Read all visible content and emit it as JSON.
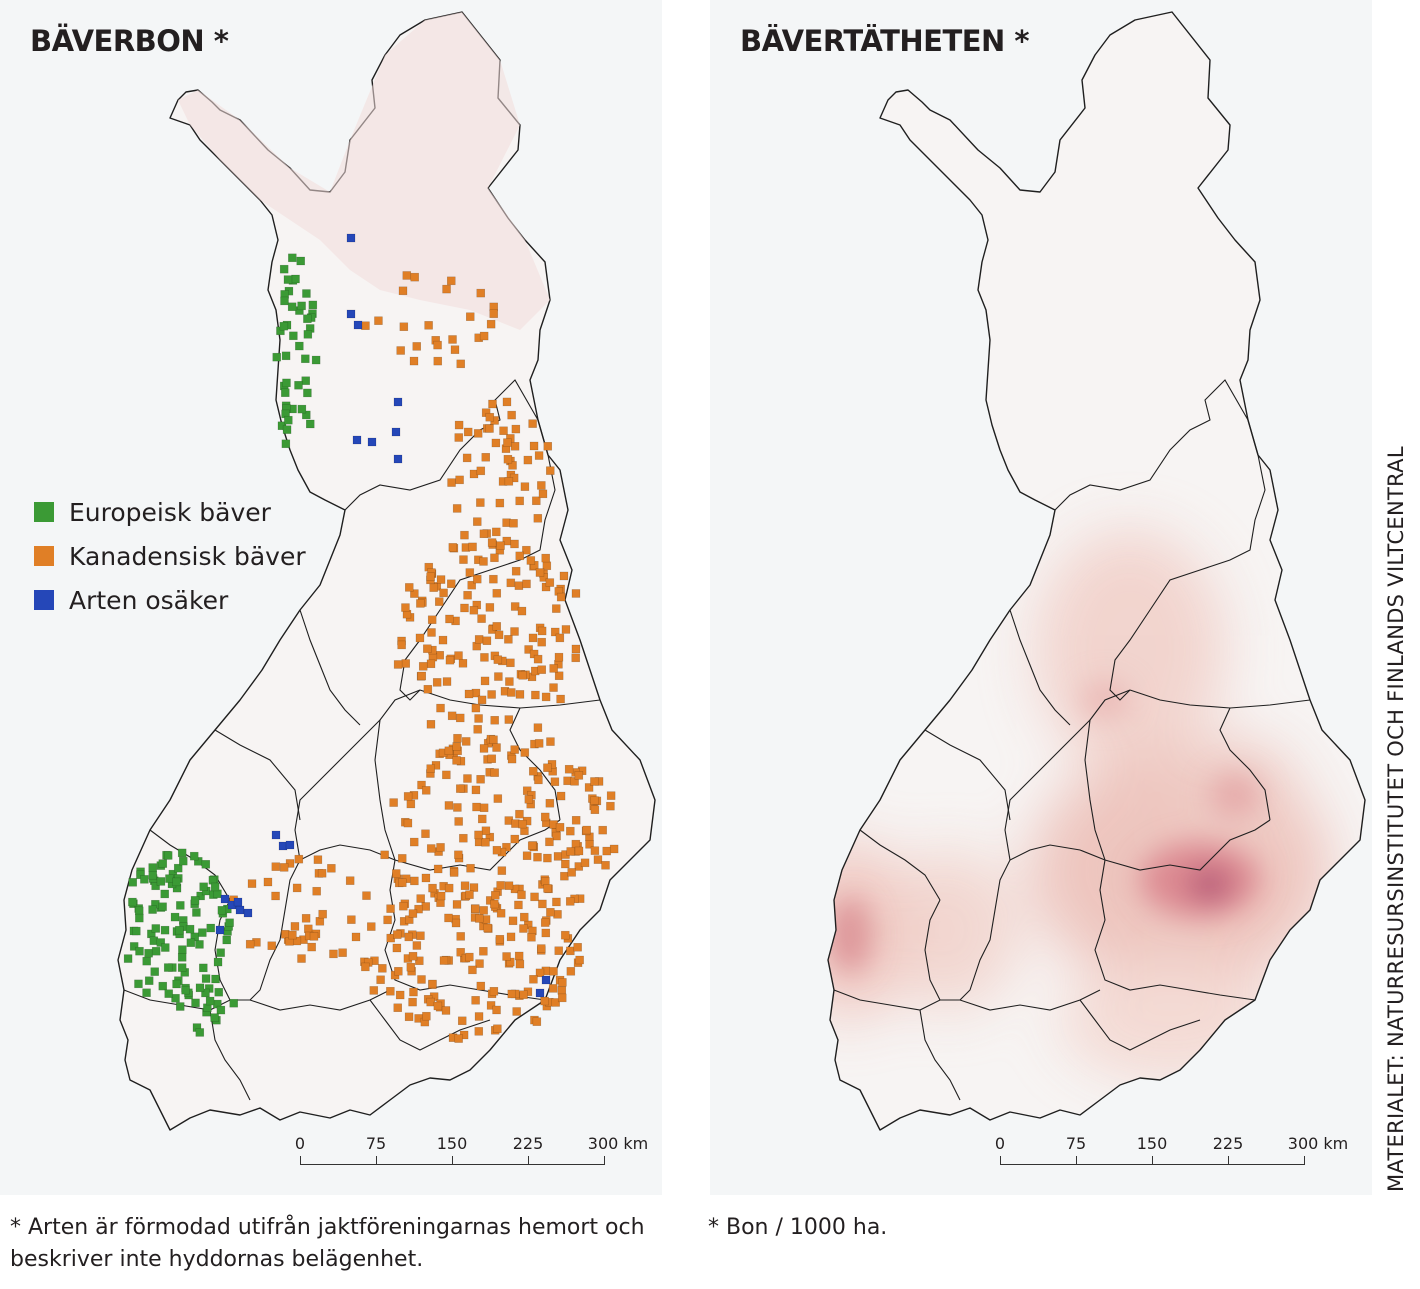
{
  "left_map": {
    "title": "BÄVERBON *",
    "legend": [
      {
        "label": "Europeisk bäver",
        "color": "#3b9a35",
        "icon": "square-marker"
      },
      {
        "label": "Kanadensisk bäver",
        "color": "#e07f26",
        "icon": "square-marker"
      },
      {
        "label": "Arten osäker",
        "color": "#2547b8",
        "icon": "square-marker"
      }
    ],
    "footnote": "* Arten är förmodad utifrån jaktföreningarnas hemort och beskriver inte hyddornas belägenhet."
  },
  "right_map": {
    "title": "BÄVERTÄTHETEN *",
    "footnote": "* Bon / 1000 ha."
  },
  "scalebar": {
    "labels": [
      "0",
      "75",
      "150",
      "225",
      "300 km"
    ]
  },
  "source": "MATERIALET: NATURRESURSINSTITUTET OCH FINLANDS VILTCENTRAL",
  "colors": {
    "land": "#f7f4f3",
    "sea": "#f0f3f5",
    "border": "#1f1f1f",
    "density_low": "#f2c9c2",
    "density_high": "#c0485a"
  }
}
